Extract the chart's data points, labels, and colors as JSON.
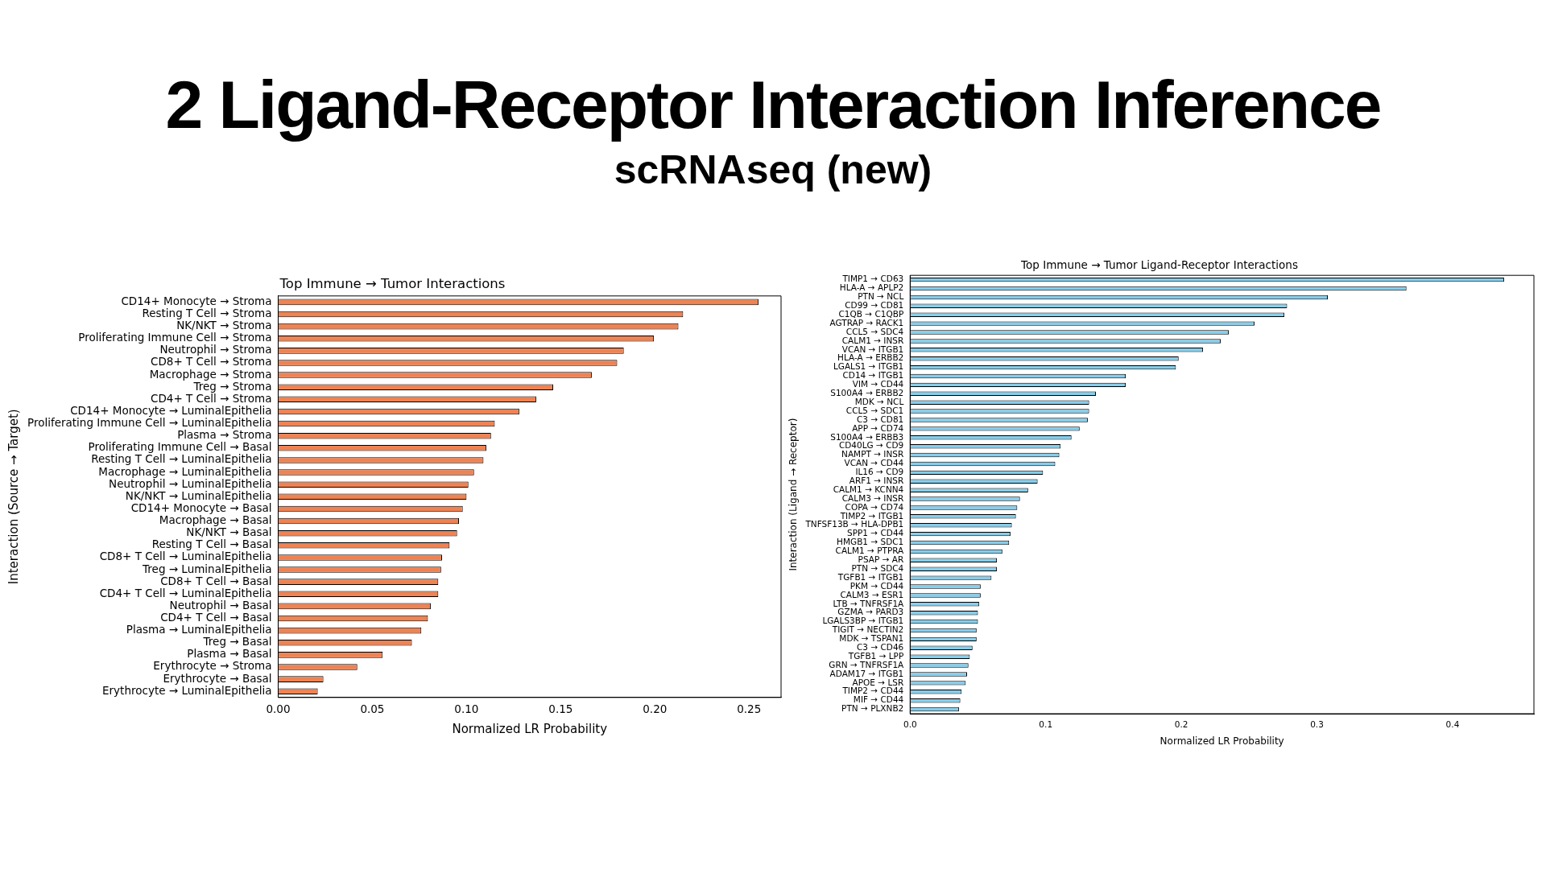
{
  "chart_data": [
    {
      "type": "other",
      "title": "2 Ligand-Receptor Interaction Inference",
      "subtitle": "scRNAseq (new)"
    },
    {
      "type": "bar",
      "orientation": "horizontal",
      "title": "Top Immune → Tumor Interactions",
      "xlabel": "Normalized LR Probability",
      "ylabel": "Interaction (Source → Target)",
      "color": "#ee8354",
      "grid": false,
      "categories": [
        "CD14+ Monocyte → Stroma",
        "Resting T Cell → Stroma",
        "NK/NKT → Stroma",
        "Proliferating Immune Cell → Stroma",
        "Neutrophil → Stroma",
        "CD8+ T Cell → Stroma",
        "Macrophage → Stroma",
        "Treg → Stroma",
        "CD4+ T Cell → Stroma",
        "CD14+ Monocyte → LuminalEpithelia",
        "Proliferating Immune Cell → LuminalEpithelia",
        "Plasma → Stroma",
        "Proliferating Immune Cell → Basal",
        "Resting T Cell → LuminalEpithelia",
        "Macrophage → LuminalEpithelia",
        "Neutrophil → LuminalEpithelia",
        "NK/NKT → LuminalEpithelia",
        "CD14+ Monocyte → Basal",
        "Macrophage → Basal",
        "NK/NKT → Basal",
        "Resting T Cell → Basal",
        "CD8+ T Cell → LuminalEpithelia",
        "Treg → LuminalEpithelia",
        "CD8+ T Cell → Basal",
        "CD4+ T Cell → LuminalEpithelia",
        "Neutrophil → Basal",
        "CD4+ T Cell → Basal",
        "Plasma → LuminalEpithelia",
        "Treg → Basal",
        "Plasma → Basal",
        "Erythrocyte → Stroma",
        "Erythrocyte → Basal",
        "Erythrocyte → LuminalEpithelia"
      ],
      "values": [
        0.255,
        0.215,
        0.2125,
        0.1995,
        0.1835,
        0.18,
        0.1665,
        0.146,
        0.137,
        0.128,
        0.115,
        0.113,
        0.1105,
        0.109,
        0.104,
        0.101,
        0.1,
        0.098,
        0.096,
        0.095,
        0.091,
        0.087,
        0.0865,
        0.085,
        0.085,
        0.081,
        0.0795,
        0.076,
        0.071,
        0.0555,
        0.042,
        0.024,
        0.021
      ],
      "xlim": [
        0,
        0.267
      ],
      "xticks": [
        {
          "value": 0,
          "label": "0.00"
        },
        0.05,
        {
          "value": 0.1,
          "label": "0.10"
        },
        0.15,
        {
          "value": 0.2,
          "label": "0.20"
        },
        0.25
      ]
    },
    {
      "type": "bar",
      "orientation": "horizontal",
      "title": "Top Immune → Tumor Ligand-Receptor Interactions",
      "xlabel": "Normalized LR Probability",
      "ylabel": "Interaction (Ligand → Receptor)",
      "color": "#87ceeb",
      "grid": false,
      "categories": [
        "TIMP1 → CD63",
        "HLA-A → APLP2",
        "PTN → NCL",
        "CD99 → CD81",
        "C1QB → C1QBP",
        "AGTRAP → RACK1",
        "CCL5 → SDC4",
        "CALM1 → INSR",
        "VCAN → ITGB1",
        "HLA-A → ERBB2",
        "LGALS1 → ITGB1",
        "CD14 → ITGB1",
        "VIM → CD44",
        "S100A4 → ERBB2",
        "MDK → NCL",
        "CCL5 → SDC1",
        "C3 → CD81",
        "APP → CD74",
        "S100A4 → ERBB3",
        "CD40LG → CD9",
        "NAMPT → INSR",
        "VCAN → CD44",
        "IL16 → CD9",
        "ARF1 → INSR",
        "CALM1 → KCNN4",
        "CALM3 → INSR",
        "COPA → CD74",
        "TIMP2 → ITGB1",
        "TNFSF13B → HLA-DPB1",
        "SPP1 → CD44",
        "HMGB1 → SDC1",
        "CALM1 → PTPRA",
        "PSAP → AR",
        "PTN → SDC4",
        "TGFB1 → ITGB1",
        "PKM → CD44",
        "CALM3 → ESR1",
        "LTB → TNFRSF1A",
        "GZMA → PARD3",
        "LGALS3BP → ITGB1",
        "TIGIT → NECTIN2",
        "MDK → TSPAN1",
        "C3 → CD46",
        "TGFB1 → LPP",
        "GRN → TNFRSF1A",
        "ADAM17 → ITGB1",
        "APOE → LSR",
        "TIMP2 → CD44",
        "MIF → CD44",
        "PTN → PLXNB2"
      ],
      "values": [
        0.438,
        0.366,
        0.308,
        0.278,
        0.276,
        0.254,
        0.235,
        0.229,
        0.216,
        0.198,
        0.196,
        0.159,
        0.159,
        0.137,
        0.132,
        0.132,
        0.131,
        0.125,
        0.119,
        0.111,
        0.11,
        0.107,
        0.098,
        0.094,
        0.087,
        0.081,
        0.079,
        0.078,
        0.075,
        0.074,
        0.073,
        0.068,
        0.064,
        0.064,
        0.06,
        0.052,
        0.052,
        0.051,
        0.05,
        0.05,
        0.049,
        0.049,
        0.046,
        0.044,
        0.043,
        0.042,
        0.041,
        0.038,
        0.037,
        0.036
      ],
      "xlim": [
        0,
        0.46
      ],
      "xticks": [
        {
          "value": 0,
          "label": "0.0"
        },
        0.1,
        0.2,
        0.3,
        0.4
      ]
    }
  ]
}
